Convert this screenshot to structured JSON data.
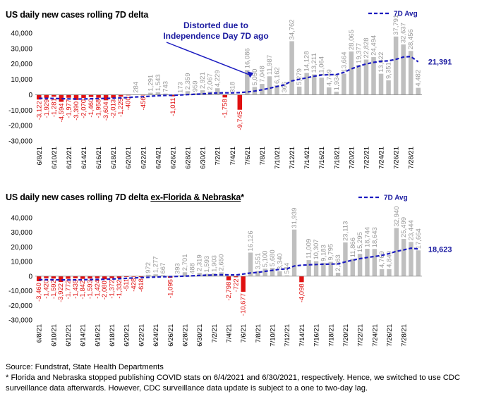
{
  "chart_data": [
    {
      "type": "bar",
      "title": "US daily new cases rolling 7D delta",
      "title_underlined": "",
      "title_suffix": "",
      "legend": "7D Avg",
      "end_label": "21,391",
      "annotation": [
        "Distorted due to",
        "Independence Day 7D ago"
      ],
      "ylim": [
        -30000,
        40000
      ],
      "yticks": [
        "40,000",
        "30,000",
        "20,000",
        "10,000",
        "0",
        "-10,000",
        "-20,000",
        "-30,000"
      ],
      "x_tick_labels": [
        "6/8/21",
        "6/10/21",
        "6/12/21",
        "6/14/21",
        "6/16/21",
        "6/18/21",
        "6/20/21",
        "6/22/21",
        "6/24/21",
        "6/26/21",
        "6/28/21",
        "6/30/21",
        "7/2/21",
        "7/4/21",
        "7/6/21",
        "7/8/21",
        "7/10/21",
        "7/12/21",
        "7/14/21",
        "7/16/21",
        "7/18/21",
        "7/20/21",
        "7/22/21",
        "7/24/21",
        "7/26/21",
        "7/28/21"
      ],
      "values": [
        -3122,
        -1929,
        -1281,
        -4594,
        -1977,
        -3390,
        -2070,
        -1460,
        -1958,
        -3604,
        -2013,
        -1225,
        -400,
        284,
        -456,
        1291,
        1543,
        743,
        -1011,
        173,
        2359,
        959,
        2921,
        2067,
        4229,
        -1758,
        318,
        -9745,
        16086,
        5050,
        7048,
        11987,
        6162,
        366,
        34762,
        5279,
        14128,
        13211,
        11064,
        4749,
        1934,
        13664,
        28065,
        19377,
        22828,
        24494,
        13622,
        9351,
        37791,
        32637,
        28456,
        4482
      ],
      "labels": [
        "-3,122",
        "-1,929",
        "-1,281",
        "-4,594",
        "-1,977",
        "-3,390",
        "-2,070",
        "-1,460",
        "-1,958",
        "-3,604",
        "-2,013",
        "-1,225",
        "-400",
        "284",
        "-456",
        "1,291",
        "1,543",
        "743",
        "-1,011",
        "173",
        "2,359",
        "959",
        "2,921",
        "2,067",
        "4,229",
        "-1,758",
        "318",
        "-9,745",
        "16,086",
        "5,050",
        "7,048",
        "11,987",
        "6,162",
        "366",
        "34,762",
        "5,279",
        "14,128",
        "13,211",
        "11,064",
        "4,749",
        "1,934",
        "13,664",
        "28,065",
        "19,377",
        "22,828",
        "24,494",
        "13,622",
        "9,351",
        "37,791",
        "32,637",
        "28,456",
        "4,482"
      ],
      "avg": [
        -2300,
        -2350,
        -2400,
        -2550,
        -2700,
        -2800,
        -2750,
        -2600,
        -2450,
        -2400,
        -2250,
        -2050,
        -1800,
        -1450,
        -1250,
        -950,
        -650,
        -450,
        -350,
        -150,
        100,
        300,
        550,
        900,
        1150,
        1250,
        1200,
        1400,
        1800,
        2400,
        3200,
        4200,
        5300,
        6400,
        9000,
        10000,
        11000,
        12000,
        12800,
        13000,
        13100,
        14500,
        16800,
        18500,
        20000,
        21000,
        21700,
        22000,
        23000,
        24500,
        24800,
        21391
      ],
      "colors": {
        "positive": "#bfbfbf",
        "negative": "#e01010",
        "avg": "#1a1ac0"
      }
    },
    {
      "type": "bar",
      "title": "US daily new cases rolling 7D delta ",
      "title_underlined": "ex-Florida & Nebraska",
      "title_suffix": "*",
      "legend": "7D Avg",
      "end_label": "18,623",
      "annotation": [],
      "ylim": [
        -30000,
        40000
      ],
      "yticks": [
        "40,000",
        "30,000",
        "20,000",
        "10,000",
        "0",
        "-10,000",
        "-20,000",
        "-30,000"
      ],
      "x_tick_labels": [
        "6/8/21",
        "6/10/21",
        "6/12/21",
        "6/14/21",
        "6/16/21",
        "6/18/21",
        "6/20/21",
        "6/22/21",
        "6/24/21",
        "6/26/21",
        "6/28/21",
        "6/30/21",
        "7/2/21",
        "7/4/21",
        "7/6/21",
        "7/8/21",
        "7/10/21",
        "7/12/21",
        "7/14/21",
        "7/16/21",
        "7/18/21",
        "7/20/21",
        "7/22/21",
        "7/24/21",
        "7/26/21",
        "7/28/21"
      ],
      "values": [
        -3460,
        -1420,
        -1592,
        -3922,
        -1772,
        -1435,
        -1842,
        -1593,
        -1424,
        -2080,
        -1372,
        -1332,
        -511,
        -428,
        -618,
        972,
        1277,
        667,
        -1095,
        393,
        2701,
        488,
        2319,
        1593,
        1903,
        2650,
        -2798,
        -722,
        -10677,
        16126,
        3551,
        5100,
        5680,
        3340,
        544,
        31939,
        -4098,
        11009,
        10307,
        9183,
        9795,
        2363,
        23113,
        11866,
        15295,
        18744,
        18643,
        4769,
        4840,
        32940,
        25499,
        23444,
        17664
      ],
      "labels": [
        "-3,460",
        "-1,420",
        "-1,592",
        "-3,922",
        "-1,772",
        "-1,435",
        "-1,842",
        "-1,593",
        "-1,424",
        "-2,080",
        "-1,372",
        "-1,332",
        "-511",
        "-428",
        "-618",
        "972",
        "1,277",
        "667",
        "-1,095",
        "393",
        "2,701",
        "488",
        "2,319",
        "1,593",
        "1,903",
        "2,650",
        "-2,798",
        "-722",
        "-10,677",
        "16,126",
        "3,551",
        "5,100",
        "5,680",
        "3,340",
        "544",
        "31,939",
        "-4,098",
        "11,009",
        "10,307",
        "9,183",
        "9,795",
        "2,363",
        "23,113",
        "11,866",
        "15,295",
        "18,744",
        "18,643",
        "4,769",
        "4,840",
        "32,940",
        "25,499",
        "23,444",
        "17,664"
      ],
      "avg": [
        -2400,
        -2420,
        -2450,
        -2550,
        -2600,
        -2550,
        -2450,
        -2350,
        -2250,
        -2150,
        -1950,
        -1700,
        -1450,
        -1200,
        -1000,
        -800,
        -600,
        -400,
        -300,
        -150,
        50,
        250,
        450,
        650,
        850,
        1000,
        900,
        800,
        1500,
        2200,
        2600,
        3300,
        4000,
        4700,
        5000,
        7000,
        7500,
        7800,
        8000,
        8200,
        8300,
        8400,
        9800,
        11000,
        12000,
        12800,
        13500,
        14200,
        15500,
        17000,
        18000,
        19200,
        18623
      ],
      "colors": {
        "positive": "#bfbfbf",
        "negative": "#e01010",
        "avg": "#1a1ac0"
      }
    }
  ],
  "footer": [
    "Source: Fundstrat, State Health Departments",
    "* Florida and Nebraska  stopped publishing COVID stats on 6/4/2021 and 6/30/2021, respectively. Hence, we switched to use CDC surveillance data afterwards. However, CDC surveillance data update is subject to a one to two-day lag."
  ]
}
